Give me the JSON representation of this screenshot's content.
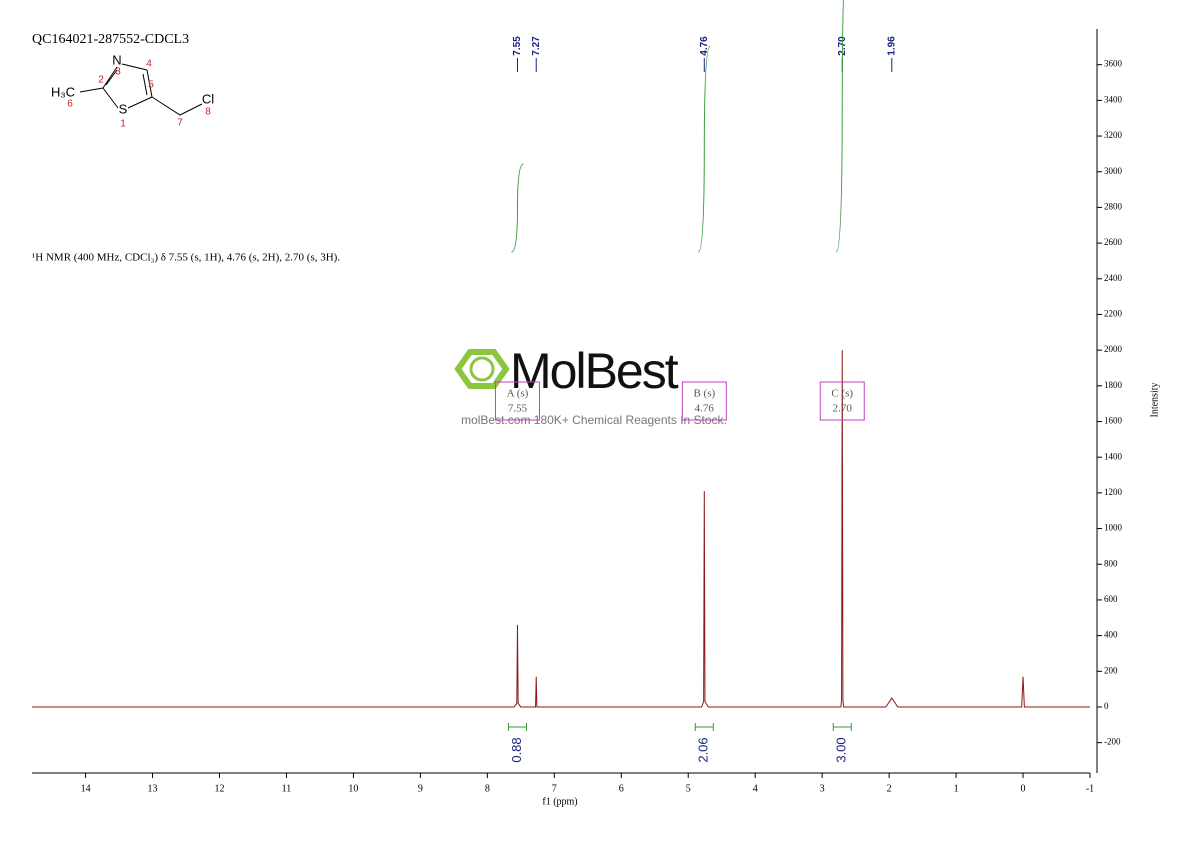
{
  "chart_data": {
    "type": "nmr",
    "title": "QC164021-287552-CDCL3",
    "description": "¹H NMR (400 MHz, CDCl₃) δ 7.55 (s, 1H), 4.76 (s, 2H), 2.70 (s, 3H).",
    "x_label": "f1 (ppm)",
    "y_label": "Intensity",
    "x": [
      14.8,
      7.6,
      7.56,
      7.55,
      7.54,
      7.5,
      7.28,
      7.27,
      7.26,
      4.8,
      4.77,
      4.76,
      4.75,
      4.7,
      2.72,
      2.71,
      2.7,
      2.69,
      2.68,
      2.05,
      1.96,
      1.87,
      0.02,
      0.0,
      -0.02,
      -1
    ],
    "values": [
      0,
      0,
      20,
      460,
      20,
      0,
      0,
      170,
      0,
      0,
      30,
      1210,
      30,
      0,
      0,
      40,
      2000,
      40,
      0,
      0,
      50,
      0,
      0,
      170,
      0,
      0
    ],
    "color": "#8b1a1a",
    "xlim": [
      14.8,
      -1
    ],
    "xticks": [
      14,
      13,
      12,
      11,
      10,
      9,
      8,
      7,
      6,
      5,
      4,
      3,
      2,
      1,
      0,
      -1
    ],
    "ylim": [
      -370,
      3800
    ],
    "yticks": [
      -200,
      0,
      200,
      400,
      600,
      800,
      1000,
      1200,
      1400,
      1600,
      1800,
      2000,
      2200,
      2400,
      2600,
      2800,
      3000,
      3200,
      3400,
      3600
    ],
    "peak_labels": [
      7.55,
      7.27,
      4.76,
      {
        "value": 2.7,
        "label": "2.70"
      },
      1.96
    ],
    "multiplets": [
      {
        "name": "A (s)",
        "shift": 7.55
      },
      {
        "name": "B (s)",
        "shift": 4.76
      },
      {
        "name": "C (s)",
        "shift": {
          "value": 2.7,
          "label": "2.70"
        }
      }
    ],
    "integrals": [
      0.88,
      2.06,
      {
        "value": 3,
        "label": "3.00"
      }
    ]
  },
  "structure": {
    "atoms": [
      "N",
      "S",
      "Cl",
      "H₃C"
    ],
    "locants": [
      1,
      2,
      3,
      4,
      5,
      6,
      7,
      8
    ]
  },
  "watermark": {
    "brand": "MolBest",
    "tagline": "molBest.com 180K+ Chemical Reagents In Stock."
  }
}
